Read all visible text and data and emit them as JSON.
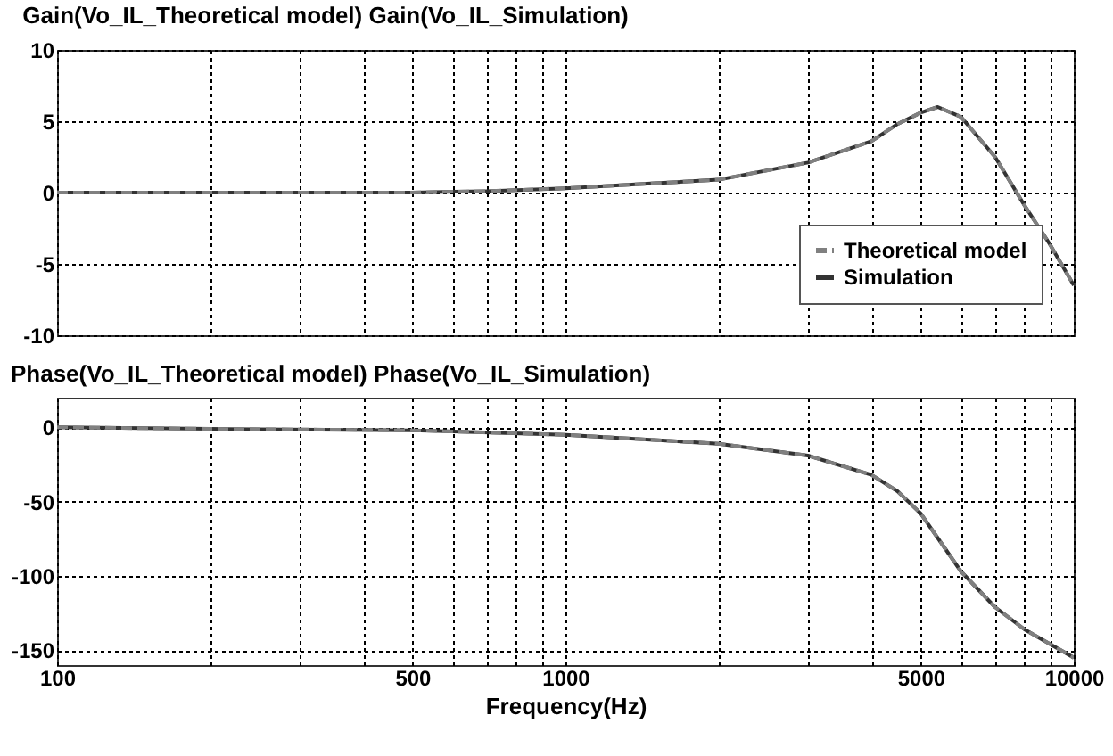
{
  "chart_data": [
    {
      "type": "line",
      "title": "Gain(Vo_IL_Theoretical model)   Gain(Vo_IL_Simulation)",
      "log": "x",
      "grid": true,
      "legend": "bottom right",
      "tick_labels": "y",
      "xlim": [
        100,
        10000
      ],
      "ylim": [
        -10,
        10
      ],
      "yticks": [
        -10,
        -5,
        0,
        5,
        10
      ],
      "xticks": [
        100,
        {
          "value": 200,
          "label": null
        },
        {
          "value": 300,
          "label": null
        },
        {
          "value": 400,
          "label": null
        },
        500,
        {
          "value": 600,
          "label": null
        },
        {
          "value": 700,
          "label": null
        },
        {
          "value": 800,
          "label": null
        },
        {
          "value": 900,
          "label": null
        },
        1000,
        {
          "value": 2000,
          "label": null
        },
        {
          "value": 3000,
          "label": null
        },
        {
          "value": 4000,
          "label": null
        },
        5000,
        {
          "value": 6000,
          "label": null
        },
        {
          "value": 7000,
          "label": null
        },
        {
          "value": 8000,
          "label": null
        },
        {
          "value": 9000,
          "label": null
        },
        10000
      ],
      "x": [
        100,
        200,
        500,
        700,
        1000,
        1500,
        2000,
        3000,
        4000,
        4500,
        5000,
        5400,
        6000,
        7000,
        8000,
        9000,
        10000
      ],
      "series": [
        {
          "name": "Theoretical model",
          "color": "#808080",
          "line_style": "dashed",
          "values": [
            0,
            0,
            0,
            0.1,
            0.3,
            0.65,
            0.9,
            2.1,
            3.6,
            4.8,
            5.6,
            6.0,
            5.3,
            2.5,
            -0.9,
            -3.7,
            -6.5
          ]
        },
        {
          "name": "Simulation",
          "color": "#333333",
          "line_style": "solid",
          "values": [
            0,
            0,
            0,
            0.1,
            0.3,
            0.65,
            0.9,
            2.1,
            3.6,
            4.8,
            5.6,
            6.0,
            5.3,
            2.5,
            -0.9,
            -3.7,
            -6.5
          ]
        }
      ]
    },
    {
      "type": "line",
      "title": "Phase(Vo_IL_Theoretical model)  Phase(Vo_IL_Simulation)",
      "xlabel": "Frequency(Hz)",
      "log": "x",
      "grid": true,
      "xlim": [
        100,
        10000
      ],
      "ylim": [
        -160,
        20
      ],
      "yticks": [
        -150,
        -100,
        -50,
        0
      ],
      "xticks": [
        100,
        {
          "value": 200,
          "label": null
        },
        {
          "value": 300,
          "label": null
        },
        {
          "value": 400,
          "label": null
        },
        500,
        {
          "value": 600,
          "label": null
        },
        {
          "value": 700,
          "label": null
        },
        {
          "value": 800,
          "label": null
        },
        {
          "value": 900,
          "label": null
        },
        1000,
        {
          "value": 2000,
          "label": null
        },
        {
          "value": 3000,
          "label": null
        },
        {
          "value": 4000,
          "label": null
        },
        5000,
        {
          "value": 6000,
          "label": null
        },
        {
          "value": 7000,
          "label": null
        },
        {
          "value": 8000,
          "label": null
        },
        {
          "value": 9000,
          "label": null
        },
        10000
      ],
      "x": [
        100,
        200,
        500,
        1000,
        2000,
        3000,
        4000,
        4500,
        5000,
        6000,
        7000,
        8000,
        9000,
        10000
      ],
      "series": [
        {
          "color": "#808080",
          "line_style": "dashed",
          "values": [
            0,
            -1,
            -2,
            -5,
            -11,
            -19,
            -32,
            -43,
            -58,
            -97,
            -121,
            -136,
            -146,
            -155
          ]
        },
        {
          "color": "#333333",
          "line_style": "solid",
          "values": [
            0,
            -1,
            -2,
            -5,
            -11,
            -19,
            -32,
            -43,
            -58,
            -97,
            -121,
            -136,
            -146,
            -155
          ]
        }
      ]
    }
  ]
}
